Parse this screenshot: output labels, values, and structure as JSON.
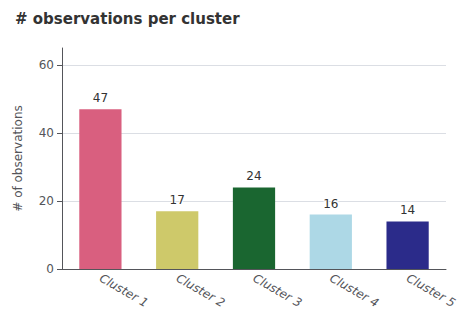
{
  "chart_data": {
    "type": "bar",
    "title": "# observations per cluster",
    "categories": [
      "Cluster 1",
      "Cluster 2",
      "Cluster 3",
      "Cluster 4",
      "Cluster 5"
    ],
    "values": [
      47,
      17,
      24,
      16,
      14
    ],
    "colors": [
      "#d95f7f",
      "#cec96a",
      "#1a6630",
      "#add8e6",
      "#2b2b8a"
    ],
    "ylabel": "# of observations",
    "ylim": [
      0,
      65
    ],
    "yticks": [
      0,
      20,
      40,
      60
    ],
    "grid": true,
    "data_labels": true
  }
}
